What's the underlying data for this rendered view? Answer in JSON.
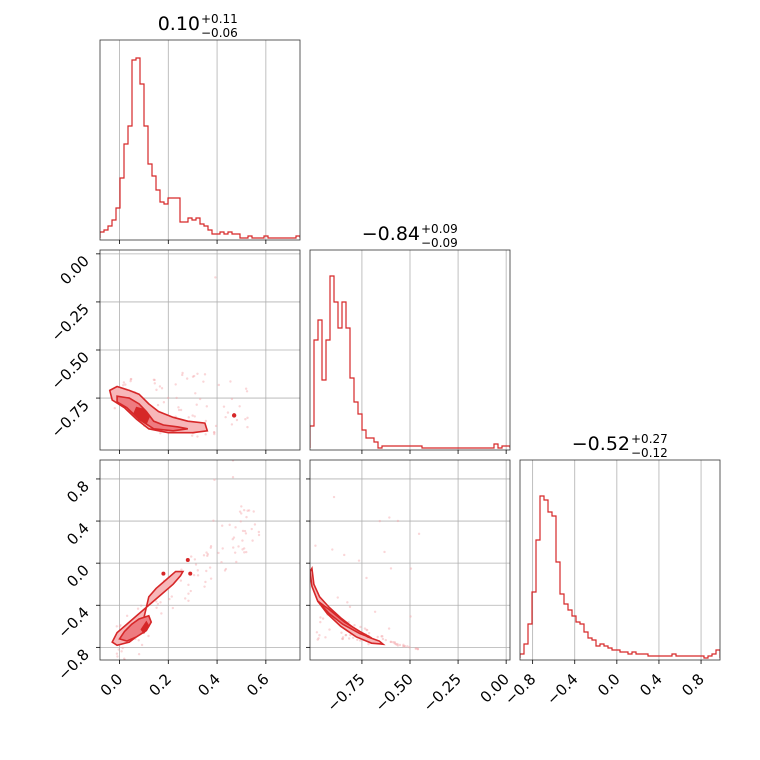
{
  "chart_data": {
    "type": "corner",
    "color": "#d62728",
    "parameters": [
      {
        "title": "0.10",
        "plus": "+0.11",
        "minus": "−0.06",
        "range": [
          -0.08,
          0.74
        ]
      },
      {
        "title": "−0.84",
        "plus": "+0.09",
        "minus": "−0.09",
        "range": [
          -1.02,
          0.02
        ]
      },
      {
        "title": "−0.52",
        "plus": "+0.27",
        "minus": "−0.12",
        "range": [
          -0.92,
          0.98
        ]
      }
    ],
    "ticks": {
      "x0": [
        {
          "v": 0.0,
          "label": "0.0"
        },
        {
          "v": 0.2,
          "label": "0.2"
        },
        {
          "v": 0.4,
          "label": "0.4"
        },
        {
          "v": 0.6,
          "label": "0.6"
        }
      ],
      "x1": [
        {
          "v": -0.75,
          "label": "−0.75"
        },
        {
          "v": -0.5,
          "label": "−0.50"
        },
        {
          "v": -0.25,
          "label": "−0.25"
        },
        {
          "v": 0.0,
          "label": "0.00"
        }
      ],
      "x2": [
        {
          "v": -0.8,
          "label": "−0.8"
        },
        {
          "v": -0.4,
          "label": "−0.4"
        },
        {
          "v": 0.0,
          "label": "0.0"
        },
        {
          "v": 0.4,
          "label": "0.4"
        },
        {
          "v": 0.8,
          "label": "0.8"
        }
      ],
      "y1": [
        {
          "v": 0.0,
          "label": "0.00"
        },
        {
          "v": -0.25,
          "label": "−0.25"
        },
        {
          "v": -0.5,
          "label": "−0.50"
        },
        {
          "v": -0.75,
          "label": "−0.75"
        }
      ],
      "y2": [
        {
          "v": 0.8,
          "label": "0.8"
        },
        {
          "v": 0.4,
          "label": "0.4"
        },
        {
          "v": 0.0,
          "label": "0.0"
        },
        {
          "v": -0.4,
          "label": "−0.4"
        },
        {
          "v": -0.8,
          "label": "−0.8"
        }
      ]
    },
    "hist0": {
      "bin_start": -0.08,
      "bin_width": 0.0164,
      "counts": [
        0.03,
        0.04,
        0.06,
        0.09,
        0.15,
        0.3,
        0.47,
        0.56,
        0.89,
        0.9,
        0.77,
        0.56,
        0.37,
        0.31,
        0.24,
        0.18,
        0.17,
        0.2,
        0.2,
        0.2,
        0.08,
        0.08,
        0.1,
        0.09,
        0.1,
        0.07,
        0.06,
        0.04,
        0.02,
        0.02,
        0.03,
        0.02,
        0.03,
        0.02,
        0.02,
        0.0,
        0.0,
        0.01,
        0.0,
        0.0,
        0.0,
        0.01,
        0.0,
        0.0,
        0.0,
        0.0,
        0.0,
        0.0,
        0.0,
        0.01
      ]
    },
    "hist1": {
      "bin_start": -1.02,
      "bin_width": 0.0208,
      "counts": [
        0.11,
        0.54,
        0.64,
        0.34,
        0.54,
        0.86,
        0.73,
        0.6,
        0.73,
        0.6,
        0.35,
        0.23,
        0.17,
        0.09,
        0.05,
        0.05,
        0.03,
        0.0,
        0.01,
        0.01,
        0.01,
        0.01,
        0.01,
        0.01,
        0.01,
        0.01,
        0.01,
        0.01,
        0.0,
        0.0,
        0.0,
        0.0,
        0.0,
        0.0,
        0.0,
        0.0,
        0.0,
        0.0,
        0.0,
        0.0,
        0.0,
        0.0,
        0.0,
        0.0,
        0.0,
        0.0,
        0.02,
        0.0,
        0.01,
        0.01
      ]
    },
    "hist2": {
      "bin_start": -0.92,
      "bin_width": 0.038,
      "counts": [
        0.02,
        0.07,
        0.17,
        0.33,
        0.59,
        0.81,
        0.79,
        0.73,
        0.71,
        0.48,
        0.32,
        0.27,
        0.24,
        0.21,
        0.18,
        0.17,
        0.13,
        0.1,
        0.09,
        0.06,
        0.07,
        0.06,
        0.05,
        0.04,
        0.04,
        0.03,
        0.03,
        0.02,
        0.03,
        0.02,
        0.02,
        0.02,
        0.01,
        0.01,
        0.01,
        0.01,
        0.01,
        0.01,
        0.02,
        0.01,
        0.01,
        0.01,
        0.01,
        0.01,
        0.01,
        0.01,
        0.0,
        0.01,
        0.02,
        0.04
      ]
    },
    "contours": {
      "p0p1": [
        [
          [
            -0.04,
            -0.71
          ],
          [
            -0.01,
            -0.69
          ],
          [
            0.04,
            -0.71
          ],
          [
            0.08,
            -0.73
          ],
          [
            0.12,
            -0.78
          ],
          [
            0.16,
            -0.82
          ],
          [
            0.22,
            -0.85
          ],
          [
            0.28,
            -0.87
          ],
          [
            0.35,
            -0.88
          ],
          [
            0.36,
            -0.92
          ],
          [
            0.3,
            -0.93
          ],
          [
            0.2,
            -0.93
          ],
          [
            0.12,
            -0.91
          ],
          [
            0.07,
            -0.86
          ],
          [
            0.02,
            -0.8
          ],
          [
            -0.03,
            -0.76
          ],
          [
            -0.04,
            -0.71
          ]
        ],
        [
          [
            -0.01,
            -0.74
          ],
          [
            0.04,
            -0.75
          ],
          [
            0.08,
            -0.78
          ],
          [
            0.11,
            -0.82
          ],
          [
            0.14,
            -0.87
          ],
          [
            0.18,
            -0.89
          ],
          [
            0.24,
            -0.9
          ],
          [
            0.28,
            -0.91
          ],
          [
            0.22,
            -0.92
          ],
          [
            0.14,
            -0.91
          ],
          [
            0.08,
            -0.86
          ],
          [
            0.03,
            -0.8
          ],
          [
            -0.01,
            -0.77
          ],
          [
            -0.01,
            -0.74
          ]
        ],
        [
          [
            0.07,
            -0.8
          ],
          [
            0.1,
            -0.81
          ],
          [
            0.12,
            -0.85
          ],
          [
            0.11,
            -0.88
          ],
          [
            0.08,
            -0.86
          ],
          [
            0.06,
            -0.83
          ],
          [
            0.07,
            -0.8
          ]
        ]
      ],
      "p0p2": [
        [
          [
            -0.03,
            -0.75
          ],
          [
            -0.01,
            -0.66
          ],
          [
            0.03,
            -0.58
          ],
          [
            0.07,
            -0.5
          ],
          [
            0.12,
            -0.4
          ],
          [
            0.17,
            -0.3
          ],
          [
            0.22,
            -0.2
          ],
          [
            0.25,
            -0.12
          ],
          [
            0.26,
            -0.08
          ],
          [
            0.23,
            -0.08
          ],
          [
            0.19,
            -0.16
          ],
          [
            0.15,
            -0.24
          ],
          [
            0.12,
            -0.32
          ],
          [
            0.11,
            -0.42
          ],
          [
            0.1,
            -0.52
          ],
          [
            0.1,
            -0.6
          ],
          [
            0.08,
            -0.68
          ],
          [
            0.04,
            -0.75
          ],
          [
            -0.01,
            -0.78
          ],
          [
            -0.03,
            -0.75
          ]
        ],
        [
          [
            0.0,
            -0.72
          ],
          [
            0.02,
            -0.65
          ],
          [
            0.05,
            -0.58
          ],
          [
            0.08,
            -0.53
          ],
          [
            0.12,
            -0.5
          ],
          [
            0.13,
            -0.56
          ],
          [
            0.11,
            -0.64
          ],
          [
            0.07,
            -0.7
          ],
          [
            0.03,
            -0.74
          ],
          [
            0.0,
            -0.72
          ]
        ],
        [
          [
            0.09,
            -0.63
          ],
          [
            0.11,
            -0.56
          ],
          [
            0.12,
            -0.6
          ],
          [
            0.1,
            -0.66
          ],
          [
            0.09,
            -0.63
          ]
        ]
      ],
      "p1p2": [
        [
          [
            -1.01,
            -0.05
          ],
          [
            -1.0,
            -0.2
          ],
          [
            -0.97,
            -0.32
          ],
          [
            -0.92,
            -0.42
          ],
          [
            -0.86,
            -0.52
          ],
          [
            -0.79,
            -0.62
          ],
          [
            -0.72,
            -0.7
          ],
          [
            -0.66,
            -0.74
          ],
          [
            -0.64,
            -0.77
          ],
          [
            -0.7,
            -0.76
          ],
          [
            -0.78,
            -0.7
          ],
          [
            -0.86,
            -0.6
          ],
          [
            -0.93,
            -0.48
          ],
          [
            -0.98,
            -0.36
          ],
          [
            -1.01,
            -0.22
          ],
          [
            -1.02,
            -0.08
          ],
          [
            -1.01,
            -0.05
          ]
        ],
        [
          [
            -0.98,
            -0.36
          ],
          [
            -0.92,
            -0.44
          ],
          [
            -0.84,
            -0.56
          ],
          [
            -0.76,
            -0.65
          ],
          [
            -0.7,
            -0.71
          ],
          [
            -0.76,
            -0.67
          ],
          [
            -0.85,
            -0.58
          ],
          [
            -0.92,
            -0.48
          ],
          [
            -0.98,
            -0.36
          ]
        ]
      ],
      "p0p1_island": [
        0.47,
        -0.84
      ],
      "p0p2_islands": [
        [
          0.28,
          0.03
        ],
        [
          0.18,
          -0.1
        ],
        [
          0.29,
          -0.1
        ]
      ]
    }
  }
}
